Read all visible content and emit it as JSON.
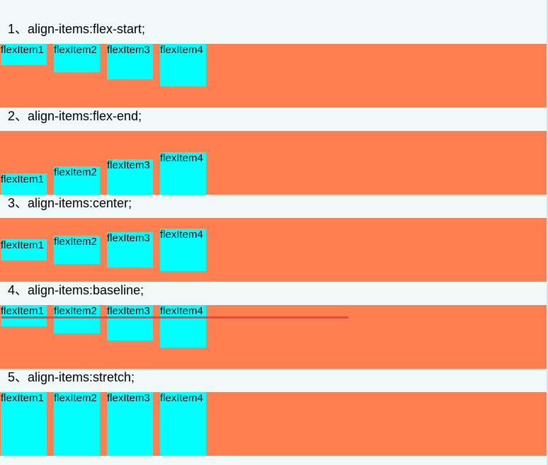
{
  "sections": [
    {
      "heading": "1、align-items:flex-start;",
      "items": [
        "flexItem1",
        "flexItem2",
        "flexItem3",
        "flexItem4"
      ]
    },
    {
      "heading": "2、align-items:flex-end;",
      "items": [
        "flexItem1",
        "flexItem2",
        "flexItem3",
        "flexItem4"
      ]
    },
    {
      "heading": "3、align-items:center;",
      "items": [
        "flexItem1",
        "flexItem2",
        "flexItem3",
        "flexItem4"
      ]
    },
    {
      "heading": "4、align-items:baseline;",
      "items": [
        "flexItem1",
        "flexItem2",
        "flexItem3",
        "flexItem4"
      ]
    },
    {
      "heading": "5、align-items:stretch;",
      "items": [
        "flexItem1",
        "flexItem2",
        "flexItem3",
        "flexItem4"
      ]
    }
  ],
  "colors": {
    "page_background": "#F0F8F8",
    "container": "#FF7F50",
    "item": "#00FFFF",
    "baseline_marker": "#E8464E"
  }
}
